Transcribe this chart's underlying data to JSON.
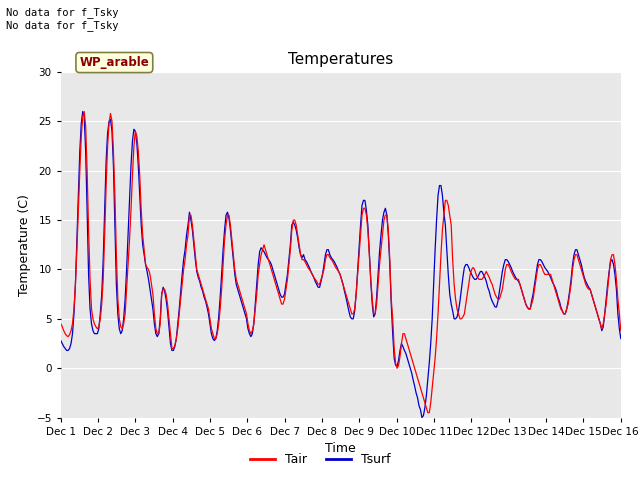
{
  "title": "Temperatures",
  "xlabel": "Time",
  "ylabel": "Temperature (C)",
  "ylim": [
    -5,
    30
  ],
  "yticks": [
    -5,
    0,
    5,
    10,
    15,
    20,
    25,
    30
  ],
  "plot_bg_color": "#e8e8e8",
  "annotation_text": "No data for f_Tsky\nNo data for f_Tsky",
  "wp_label": "WP_arable",
  "legend_entries": [
    "Tair",
    "Tsurf"
  ],
  "tair_color": "#ff0000",
  "tsurf_color": "#0000cc",
  "xtick_labels": [
    "Dec 1",
    "Dec 2",
    "Dec 3",
    "Dec 4",
    "Dec 5",
    "Dec 6",
    "Dec 7",
    "Dec 8",
    "Dec 9",
    "Dec 10",
    "Dec 11",
    "Dec 12",
    "Dec 13",
    "Dec 14",
    "Dec 15",
    "Dec 16"
  ],
  "tair": [
    4.5,
    4.2,
    3.8,
    3.5,
    3.3,
    3.2,
    3.4,
    3.8,
    4.5,
    6.0,
    8.5,
    12.0,
    16.0,
    20.0,
    23.5,
    25.5,
    26.0,
    24.5,
    20.0,
    14.0,
    9.0,
    6.0,
    5.0,
    4.5,
    4.2,
    4.0,
    4.2,
    5.0,
    6.5,
    9.0,
    13.5,
    18.5,
    22.5,
    24.8,
    25.8,
    25.0,
    22.0,
    17.5,
    11.5,
    7.0,
    5.0,
    4.2,
    4.0,
    4.5,
    5.5,
    8.0,
    10.5,
    13.0,
    16.0,
    19.5,
    22.5,
    24.0,
    23.5,
    22.0,
    19.5,
    16.0,
    13.5,
    12.0,
    10.5,
    10.2,
    10.0,
    9.5,
    8.5,
    7.5,
    5.5,
    4.0,
    3.5,
    3.5,
    4.5,
    7.5,
    8.0,
    8.0,
    7.5,
    6.5,
    5.0,
    3.5,
    2.0,
    2.0,
    2.3,
    3.0,
    4.0,
    5.5,
    7.0,
    8.5,
    10.0,
    11.0,
    12.5,
    13.5,
    15.5,
    15.5,
    14.5,
    13.0,
    11.5,
    10.0,
    9.5,
    9.0,
    8.5,
    8.0,
    7.5,
    7.0,
    6.5,
    6.0,
    5.0,
    4.0,
    3.5,
    3.0,
    3.0,
    3.5,
    4.5,
    6.0,
    8.0,
    10.5,
    13.0,
    14.5,
    15.5,
    15.5,
    14.5,
    13.0,
    11.5,
    10.0,
    9.0,
    8.5,
    8.0,
    7.5,
    7.0,
    6.5,
    6.0,
    5.5,
    4.5,
    3.8,
    3.5,
    3.8,
    4.5,
    6.0,
    7.5,
    9.5,
    10.5,
    11.5,
    12.0,
    12.5,
    12.0,
    11.5,
    11.0,
    10.5,
    10.0,
    9.5,
    9.0,
    8.5,
    8.0,
    7.5,
    7.0,
    6.5,
    6.5,
    7.0,
    8.0,
    9.0,
    10.5,
    12.0,
    14.0,
    15.0,
    15.0,
    14.5,
    13.5,
    12.5,
    11.5,
    11.0,
    11.0,
    10.8,
    10.5,
    10.2,
    10.0,
    9.8,
    9.5,
    9.2,
    9.0,
    8.8,
    8.5,
    8.5,
    9.0,
    9.5,
    10.0,
    11.0,
    11.5,
    11.5,
    11.2,
    11.0,
    10.8,
    10.5,
    10.2,
    10.0,
    9.8,
    9.5,
    9.0,
    8.5,
    8.0,
    7.5,
    7.0,
    6.5,
    6.0,
    5.5,
    5.5,
    6.0,
    7.5,
    9.5,
    11.5,
    13.5,
    15.5,
    16.2,
    16.2,
    15.5,
    14.0,
    11.5,
    9.0,
    7.0,
    5.5,
    5.5,
    6.5,
    8.5,
    10.5,
    12.0,
    13.5,
    15.0,
    15.5,
    15.5,
    14.0,
    11.0,
    7.0,
    5.0,
    2.0,
    0.5,
    0.0,
    0.3,
    1.2,
    2.5,
    3.5,
    3.5,
    3.0,
    2.5,
    2.0,
    1.5,
    1.0,
    0.5,
    0.0,
    -0.5,
    -1.0,
    -1.5,
    -2.0,
    -2.5,
    -3.0,
    -3.5,
    -4.0,
    -4.5,
    -4.5,
    -3.5,
    -2.0,
    -0.5,
    1.0,
    3.0,
    5.5,
    8.5,
    11.5,
    14.0,
    15.5,
    17.0,
    17.0,
    16.5,
    15.5,
    14.5,
    11.0,
    8.5,
    7.0,
    6.0,
    5.5,
    5.0,
    5.0,
    5.2,
    5.5,
    6.5,
    7.5,
    8.5,
    9.5,
    10.0,
    10.2,
    10.0,
    9.5,
    9.2,
    9.0,
    9.0,
    9.0,
    9.2,
    9.5,
    9.8,
    9.5,
    9.2,
    8.8,
    8.5,
    8.0,
    7.5,
    7.2,
    7.0,
    7.0,
    7.5,
    8.0,
    9.0,
    10.0,
    10.5,
    10.5,
    10.2,
    9.8,
    9.5,
    9.2,
    9.0,
    9.0,
    9.0,
    8.5,
    8.0,
    7.5,
    7.0,
    6.5,
    6.2,
    6.0,
    6.0,
    6.5,
    7.0,
    8.0,
    9.0,
    10.0,
    10.5,
    10.5,
    10.2,
    9.8,
    9.5,
    9.5,
    9.5,
    9.5,
    9.5,
    9.0,
    8.5,
    8.0,
    7.5,
    7.0,
    6.5,
    6.0,
    5.8,
    5.5,
    5.5,
    6.0,
    6.5,
    7.5,
    8.5,
    10.0,
    11.0,
    11.5,
    11.5,
    11.0,
    10.5,
    10.0,
    9.5,
    9.0,
    8.5,
    8.2,
    8.0,
    8.0,
    7.5,
    7.0,
    6.5,
    6.0,
    5.5,
    5.0,
    4.5,
    4.0,
    4.5,
    5.5,
    6.5,
    8.0,
    9.5,
    11.0,
    11.5,
    11.5,
    10.5,
    9.0,
    7.0,
    5.5,
    3.8
  ],
  "tsurf": [
    2.8,
    2.5,
    2.2,
    2.0,
    1.8,
    1.8,
    2.0,
    2.5,
    3.5,
    5.5,
    8.5,
    13.0,
    17.5,
    22.0,
    24.8,
    26.0,
    25.5,
    22.0,
    16.0,
    9.5,
    6.0,
    4.5,
    3.8,
    3.5,
    3.5,
    3.5,
    4.0,
    5.5,
    7.5,
    11.0,
    16.0,
    21.0,
    23.8,
    25.0,
    25.2,
    24.0,
    20.5,
    14.5,
    8.5,
    5.5,
    4.0,
    3.5,
    3.8,
    5.0,
    7.0,
    10.0,
    13.5,
    17.0,
    20.5,
    23.0,
    24.2,
    24.0,
    22.8,
    20.5,
    17.5,
    14.5,
    12.5,
    11.5,
    10.5,
    9.8,
    9.0,
    8.0,
    7.0,
    6.0,
    4.5,
    3.5,
    3.2,
    3.5,
    5.0,
    7.5,
    8.2,
    7.8,
    7.0,
    5.8,
    4.2,
    2.5,
    1.8,
    1.8,
    2.2,
    3.0,
    4.5,
    6.0,
    7.8,
    9.5,
    11.0,
    12.0,
    13.5,
    14.5,
    15.8,
    15.0,
    14.0,
    12.5,
    11.0,
    9.8,
    9.2,
    8.8,
    8.2,
    7.8,
    7.2,
    6.8,
    6.2,
    5.5,
    4.5,
    3.5,
    3.0,
    2.8,
    3.0,
    3.8,
    5.2,
    7.2,
    9.5,
    12.0,
    14.0,
    15.5,
    15.8,
    15.2,
    14.0,
    12.5,
    11.0,
    9.5,
    8.5,
    8.0,
    7.5,
    7.0,
    6.5,
    6.0,
    5.5,
    5.0,
    4.0,
    3.5,
    3.2,
    3.5,
    4.5,
    6.5,
    8.5,
    10.5,
    11.8,
    12.2,
    12.0,
    11.8,
    11.5,
    11.2,
    11.0,
    10.8,
    10.5,
    10.0,
    9.5,
    9.0,
    8.5,
    8.0,
    7.5,
    7.2,
    7.2,
    7.5,
    8.5,
    9.5,
    11.0,
    12.5,
    14.5,
    14.8,
    14.5,
    14.0,
    13.2,
    12.2,
    11.5,
    11.2,
    11.5,
    11.0,
    10.8,
    10.5,
    10.2,
    9.8,
    9.5,
    9.2,
    8.8,
    8.5,
    8.2,
    8.2,
    8.8,
    9.5,
    10.5,
    11.5,
    12.0,
    12.0,
    11.5,
    11.2,
    11.0,
    10.8,
    10.5,
    10.2,
    9.8,
    9.5,
    9.0,
    8.5,
    7.8,
    7.2,
    6.5,
    5.8,
    5.2,
    5.0,
    5.0,
    5.8,
    7.5,
    9.8,
    12.0,
    14.5,
    16.5,
    17.0,
    17.0,
    16.0,
    14.5,
    11.8,
    8.8,
    6.5,
    5.2,
    5.5,
    7.2,
    9.5,
    11.8,
    13.5,
    15.0,
    15.8,
    16.2,
    15.5,
    13.5,
    10.5,
    6.5,
    3.5,
    1.0,
    0.3,
    0.2,
    0.8,
    1.8,
    2.5,
    2.2,
    1.8,
    1.5,
    1.0,
    0.5,
    0.0,
    -0.5,
    -1.2,
    -1.8,
    -2.5,
    -3.0,
    -3.8,
    -4.2,
    -5.0,
    -4.8,
    -4.0,
    -2.8,
    -1.2,
    0.5,
    2.5,
    5.0,
    8.5,
    12.0,
    15.0,
    17.5,
    18.5,
    18.5,
    17.5,
    15.8,
    14.5,
    12.0,
    9.5,
    7.5,
    6.5,
    5.8,
    5.0,
    5.0,
    5.2,
    5.8,
    6.8,
    8.0,
    9.2,
    10.2,
    10.5,
    10.5,
    10.2,
    9.8,
    9.5,
    9.2,
    9.0,
    9.0,
    9.2,
    9.5,
    9.8,
    9.8,
    9.5,
    9.2,
    8.8,
    8.2,
    7.8,
    7.2,
    6.8,
    6.5,
    6.2,
    6.2,
    6.8,
    7.8,
    8.8,
    9.8,
    10.5,
    11.0,
    11.0,
    10.8,
    10.5,
    10.2,
    9.8,
    9.5,
    9.2,
    9.0,
    8.8,
    8.5,
    8.0,
    7.5,
    7.0,
    6.5,
    6.2,
    6.0,
    6.0,
    6.8,
    7.5,
    8.5,
    9.5,
    10.5,
    11.0,
    11.0,
    10.8,
    10.5,
    10.2,
    10.0,
    9.8,
    9.5,
    9.2,
    8.8,
    8.5,
    8.2,
    7.8,
    7.2,
    6.8,
    6.2,
    5.8,
    5.5,
    5.5,
    6.0,
    6.8,
    7.8,
    9.0,
    10.5,
    11.5,
    12.0,
    12.0,
    11.5,
    11.0,
    10.5,
    9.8,
    9.2,
    8.8,
    8.5,
    8.2,
    8.0,
    7.5,
    7.0,
    6.5,
    6.0,
    5.5,
    5.0,
    4.5,
    3.8,
    4.2,
    5.5,
    7.0,
    8.5,
    9.8,
    10.8,
    11.0,
    10.5,
    9.5,
    8.0,
    5.5,
    4.0,
    3.0
  ]
}
